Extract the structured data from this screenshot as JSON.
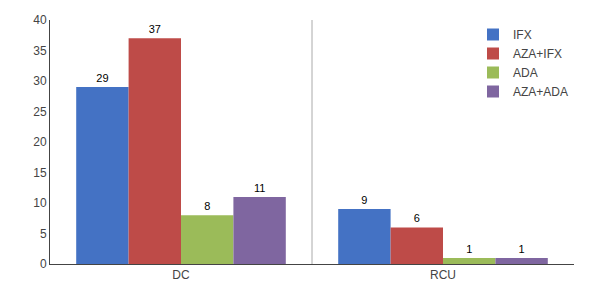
{
  "chart_data": {
    "type": "bar",
    "categories": [
      "DC",
      "RCU"
    ],
    "series": [
      {
        "name": "IFX",
        "color": "#4472C4",
        "values": [
          29,
          9
        ]
      },
      {
        "name": "AZA+IFX",
        "color": "#BE4B48",
        "values": [
          37,
          6
        ]
      },
      {
        "name": "ADA",
        "color": "#9BBB59",
        "values": [
          8,
          1
        ]
      },
      {
        "name": "AZA+ADA",
        "color": "#7F66A0",
        "values": [
          11,
          1
        ]
      }
    ],
    "ylim": [
      0,
      40
    ],
    "yticks": [
      0,
      5,
      10,
      15,
      20,
      25,
      30,
      35,
      40
    ],
    "grid": false,
    "legend": "upper right",
    "data_labels": true
  }
}
